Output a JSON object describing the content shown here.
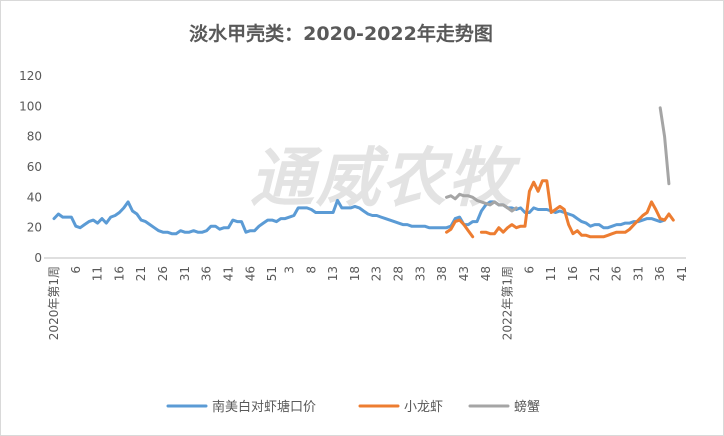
{
  "chart_data": {
    "type": "line",
    "title": "淡水甲壳类：2020-2022年走势图",
    "watermark": "通威农牧",
    "ylim": [
      0,
      120
    ],
    "yticks": [
      0,
      20,
      40,
      60,
      80,
      100,
      120
    ],
    "xlabels": [
      {
        "label": "2020年第1周",
        "week": 1,
        "rotated": true
      },
      {
        "label": "6",
        "week": 6
      },
      {
        "label": "11",
        "week": 11
      },
      {
        "label": "16",
        "week": 16
      },
      {
        "label": "21",
        "week": 21
      },
      {
        "label": "26",
        "week": 26
      },
      {
        "label": "31",
        "week": 31
      },
      {
        "label": "36",
        "week": 36
      },
      {
        "label": "41",
        "week": 41
      },
      {
        "label": "46",
        "week": 46
      },
      {
        "label": "51",
        "week": 51
      },
      {
        "label": "3",
        "week": 55
      },
      {
        "label": "8",
        "week": 60
      },
      {
        "label": "13",
        "week": 65
      },
      {
        "label": "18",
        "week": 70
      },
      {
        "label": "23",
        "week": 75
      },
      {
        "label": "28",
        "week": 80
      },
      {
        "label": "33",
        "week": 85
      },
      {
        "label": "38",
        "week": 90
      },
      {
        "label": "43",
        "week": 95
      },
      {
        "label": "48",
        "week": 100
      },
      {
        "label": "2022年第1周",
        "week": 105,
        "rotated": true
      },
      {
        "label": "6",
        "week": 110
      },
      {
        "label": "11",
        "week": 115
      },
      {
        "label": "16",
        "week": 120
      },
      {
        "label": "21",
        "week": 125
      },
      {
        "label": "26",
        "week": 130
      },
      {
        "label": "31",
        "week": 135
      },
      {
        "label": "36",
        "week": 140
      },
      {
        "label": "41",
        "week": 145
      }
    ],
    "xlim": [
      1,
      145
    ],
    "grid": false,
    "legend_position": "bottom",
    "series": [
      {
        "name": "南美白对虾塘口价",
        "color": "#5b9bd5",
        "start_week": 1,
        "values": [
          26,
          29,
          27,
          27,
          27,
          21,
          20,
          22,
          24,
          25,
          23,
          26,
          23,
          27,
          28,
          30,
          33,
          37,
          31,
          29,
          25,
          24,
          22,
          20,
          18,
          17,
          17,
          16,
          16,
          18,
          17,
          17,
          18,
          17,
          17,
          18,
          21,
          21,
          19,
          20,
          20,
          25,
          24,
          24,
          17,
          18,
          18,
          21,
          23,
          25,
          25,
          24,
          26,
          26,
          27,
          28,
          33,
          33,
          33,
          32,
          30,
          30,
          30,
          30,
          30,
          38,
          33,
          33,
          33,
          34,
          33,
          31,
          29,
          28,
          28,
          27,
          26,
          25,
          24,
          23,
          22,
          22,
          21,
          21,
          21,
          21,
          20,
          20,
          20,
          20,
          20,
          21,
          26,
          27,
          22,
          22,
          24,
          24,
          31,
          35,
          37,
          37,
          35,
          35,
          33,
          33,
          32,
          33,
          30,
          30,
          33,
          32,
          32,
          32,
          31,
          30,
          31,
          30,
          29,
          28,
          26,
          24,
          23,
          21,
          22,
          22,
          20,
          20,
          21,
          22,
          22,
          23,
          23,
          24,
          24,
          25,
          26,
          26,
          25,
          24,
          25
        ]
      },
      {
        "name": "小龙虾",
        "color": "#ed7d31",
        "segments": [
          {
            "start_week": 91,
            "values": [
              17,
              19,
              24,
              25,
              22,
              18,
              14
            ]
          },
          {
            "start_week": 99,
            "values": [
              17,
              17,
              16,
              16,
              20,
              17,
              20,
              22,
              20,
              21,
              21,
              44,
              50,
              44,
              51,
              51,
              30,
              32,
              34,
              32,
              22,
              16,
              18,
              15,
              15,
              14,
              14,
              14,
              14,
              15,
              16,
              17,
              17,
              17,
              19,
              22,
              25,
              28,
              30,
              37,
              32,
              26,
              25,
              29,
              25
            ]
          }
        ]
      },
      {
        "name": "螃蟹",
        "color": "#a5a5a5",
        "segments": [
          {
            "start_week": 91,
            "values": [
              40,
              41,
              39,
              42,
              41,
              41,
              40,
              38,
              37,
              36,
              35,
              37,
              35,
              35,
              33,
              31,
              33
            ]
          },
          {
            "start_week": 140,
            "values": [
              99,
              80,
              49
            ]
          }
        ]
      }
    ]
  }
}
